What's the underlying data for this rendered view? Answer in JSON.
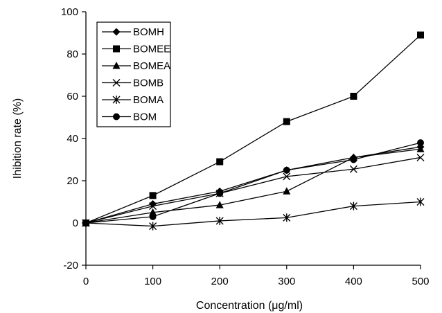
{
  "chart_data": {
    "type": "line",
    "xlabel": "Concentration (μg/ml)",
    "ylabel": "Ihibition rate (%)",
    "xlim": [
      0,
      500
    ],
    "ylim": [
      -20,
      100
    ],
    "x_ticks": [
      0,
      100,
      200,
      300,
      400,
      500
    ],
    "y_ticks": [
      -20,
      0,
      20,
      40,
      60,
      80,
      100
    ],
    "grid": false,
    "legend_position": "top-left",
    "x": [
      0,
      100,
      200,
      300,
      400,
      500
    ],
    "series": [
      {
        "name": "BOMH",
        "marker": "diamond",
        "values": [
          0,
          9,
          15,
          25,
          31,
          36
        ]
      },
      {
        "name": "BOMEE",
        "marker": "square",
        "values": [
          0,
          13,
          29,
          48,
          60,
          89
        ]
      },
      {
        "name": "BOMEA",
        "marker": "triangle",
        "values": [
          0,
          5,
          8.5,
          15,
          31,
          35
        ]
      },
      {
        "name": "BOMB",
        "marker": "x",
        "values": [
          0,
          8,
          14,
          22,
          25.5,
          31
        ]
      },
      {
        "name": "BOMA",
        "marker": "star",
        "values": [
          0,
          -1.5,
          1,
          2.5,
          8,
          10
        ]
      },
      {
        "name": "BOM",
        "marker": "circle",
        "values": [
          0,
          3,
          14,
          25,
          30,
          38
        ]
      }
    ]
  }
}
